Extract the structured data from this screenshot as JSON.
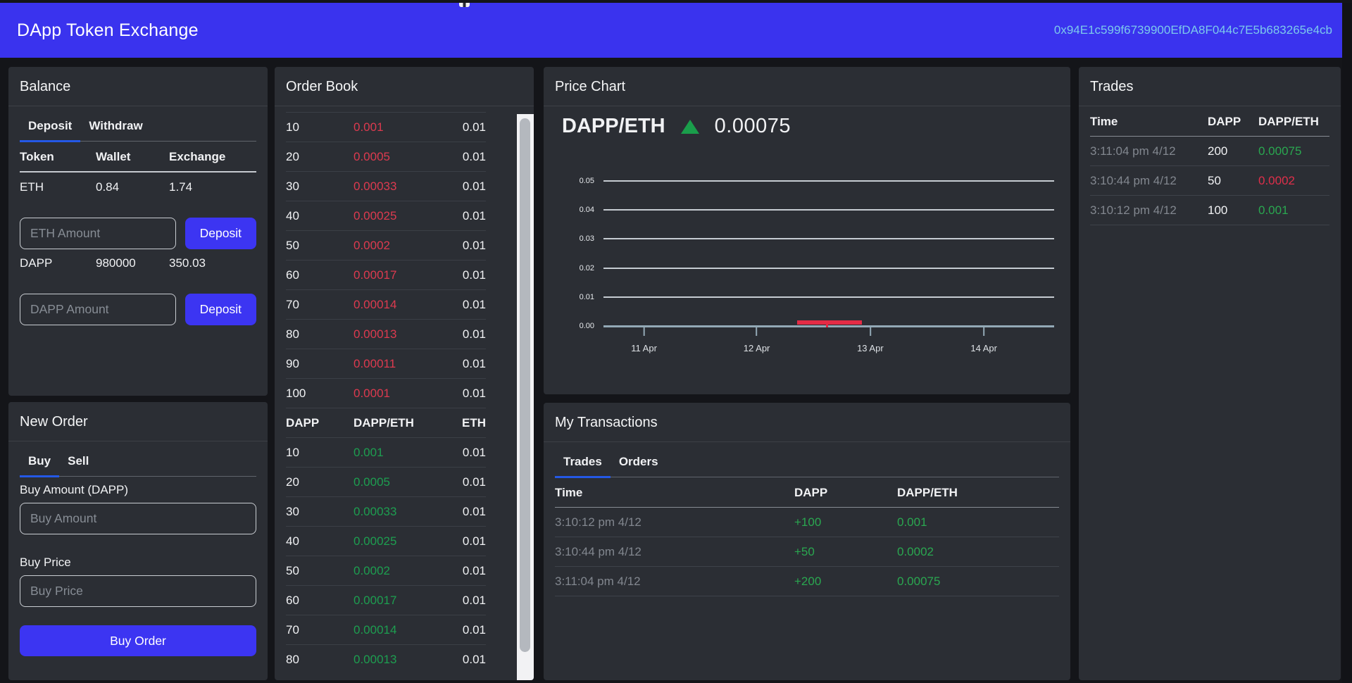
{
  "header": {
    "brand": "DApp Token Exchange",
    "account_address": "0x94E1c599f6739900EfDA8F044c7E5b683265e4cb"
  },
  "colors": {
    "navbar_blue": "#3a33ee",
    "button_blue": "#3c35f2",
    "tab_underline_blue": "#2458e6",
    "sell_red": "#dd3a4f",
    "buy_green": "#1d9e50",
    "tx_green": "#2aa750",
    "address_text": "#7cc9ec",
    "panel_bg": "#2b2e34",
    "page_bg": "#141519"
  },
  "balance": {
    "title": "Balance",
    "tabs": [
      {
        "label": "Deposit",
        "state": "active"
      },
      {
        "label": "Withdraw",
        "state": ""
      }
    ],
    "table_headers": [
      "Token",
      "Wallet",
      "Exchange"
    ],
    "rows": [
      {
        "token": "ETH",
        "wallet": "0.84",
        "exchange": "1.74"
      },
      {
        "token": "DAPP",
        "wallet": "980000",
        "exchange": "350.03"
      }
    ],
    "eth_input_placeholder": "ETH Amount",
    "dapp_input_placeholder": "DAPP Amount",
    "deposit_button": "Deposit"
  },
  "new_order": {
    "title": "New Order",
    "tabs": [
      {
        "label": "Buy",
        "state": "active"
      },
      {
        "label": "Sell",
        "state": ""
      }
    ],
    "amount_label": "Buy Amount (DAPP)",
    "amount_placeholder": "Buy Amount",
    "price_label": "Buy Price",
    "price_placeholder": "Buy Price",
    "submit_button": "Buy Order"
  },
  "order_book": {
    "title": "Order Book",
    "column_headers": [
      "DAPP",
      "DAPP/ETH",
      "ETH"
    ],
    "sell_orders": [
      {
        "amount": "10",
        "price": "0.001",
        "total": "0.01"
      },
      {
        "amount": "20",
        "price": "0.0005",
        "total": "0.01"
      },
      {
        "amount": "30",
        "price": "0.00033",
        "total": "0.01"
      },
      {
        "amount": "40",
        "price": "0.00025",
        "total": "0.01"
      },
      {
        "amount": "50",
        "price": "0.0002",
        "total": "0.01"
      },
      {
        "amount": "60",
        "price": "0.00017",
        "total": "0.01"
      },
      {
        "amount": "70",
        "price": "0.00014",
        "total": "0.01"
      },
      {
        "amount": "80",
        "price": "0.00013",
        "total": "0.01"
      },
      {
        "amount": "90",
        "price": "0.00011",
        "total": "0.01"
      },
      {
        "amount": "100",
        "price": "0.0001",
        "total": "0.01"
      }
    ],
    "buy_orders": [
      {
        "amount": "10",
        "price": "0.001",
        "total": "0.01"
      },
      {
        "amount": "20",
        "price": "0.0005",
        "total": "0.01"
      },
      {
        "amount": "30",
        "price": "0.00033",
        "total": "0.01"
      },
      {
        "amount": "40",
        "price": "0.00025",
        "total": "0.01"
      },
      {
        "amount": "50",
        "price": "0.0002",
        "total": "0.01"
      },
      {
        "amount": "60",
        "price": "0.00017",
        "total": "0.01"
      },
      {
        "amount": "70",
        "price": "0.00014",
        "total": "0.01"
      },
      {
        "amount": "80",
        "price": "0.00013",
        "total": "0.01"
      }
    ]
  },
  "price_chart": {
    "title": "Price Chart",
    "pair": "DAPP/ETH",
    "trend": "up",
    "last_price": "0.00075",
    "chart_data": {
      "type": "candlestick",
      "pair": "DAPP/ETH",
      "ylim": [
        0,
        0.05
      ],
      "y_ticks": [
        "0.05",
        "0.04",
        "0.03",
        "0.02",
        "0.01",
        "0.00"
      ],
      "x_ticks": [
        "11 Apr",
        "12 Apr",
        "13 Apr",
        "14 Apr"
      ],
      "grid": "horizontal",
      "legend": "none",
      "series": [
        {
          "name": "DAPP/ETH price",
          "candles": [
            {
              "x": "between 12 Apr and 13 Apr",
              "open": 0.001,
              "high": 0.001,
              "low": 0.0002,
              "close": 0.00075,
              "direction": "down",
              "color": "#e42b45"
            }
          ]
        }
      ]
    }
  },
  "my_transactions": {
    "title": "My Transactions",
    "tabs": [
      {
        "label": "Trades",
        "state": "active"
      },
      {
        "label": "Orders",
        "state": ""
      }
    ],
    "column_headers": [
      "Time",
      "DAPP",
      "DAPP/ETH"
    ],
    "rows": [
      {
        "time": "3:10:12 pm 4/12",
        "amount": "+100",
        "price": "0.001",
        "direction": "buy"
      },
      {
        "time": "3:10:44 pm 4/12",
        "amount": "+50",
        "price": "0.0002",
        "direction": "buy"
      },
      {
        "time": "3:11:04 pm 4/12",
        "amount": "+200",
        "price": "0.00075",
        "direction": "buy"
      }
    ]
  },
  "trades": {
    "title": "Trades",
    "column_headers": [
      "Time",
      "DAPP",
      "DAPP/ETH"
    ],
    "rows": [
      {
        "time": "3:11:04 pm 4/12",
        "amount": "200",
        "price": "0.00075",
        "direction": "up"
      },
      {
        "time": "3:10:44 pm 4/12",
        "amount": "50",
        "price": "0.0002",
        "direction": "down"
      },
      {
        "time": "3:10:12 pm 4/12",
        "amount": "100",
        "price": "0.001",
        "direction": "up"
      }
    ]
  }
}
